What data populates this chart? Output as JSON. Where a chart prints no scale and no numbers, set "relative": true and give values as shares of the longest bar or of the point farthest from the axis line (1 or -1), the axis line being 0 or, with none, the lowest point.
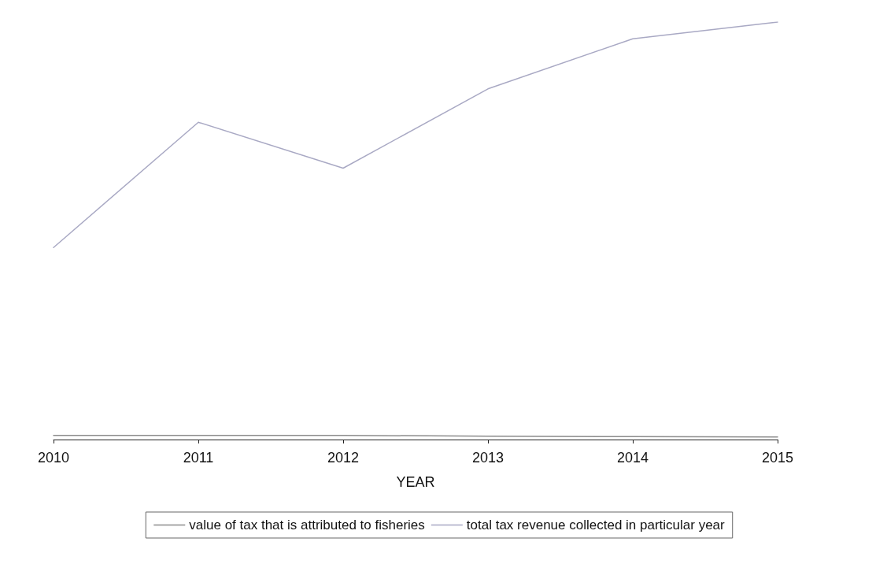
{
  "chart_data": {
    "type": "line",
    "relative": true,
    "xlabel": "YEAR",
    "categories": [
      "2010",
      "2011",
      "2012",
      "2013",
      "2014",
      "2015"
    ],
    "series": [
      {
        "name": "value of tax that is attributed to fisheries",
        "color": "#8c8c8c",
        "values": [
          0.01,
          0.01,
          0.01,
          0.008,
          0.007,
          0.006
        ]
      },
      {
        "name": "total tax revenue collected in particular year",
        "color": "#a9a9c4",
        "values": [
          0.46,
          0.76,
          0.65,
          0.84,
          0.96,
          1
        ]
      }
    ],
    "grid": false,
    "legend": "bottom",
    "marker": "none",
    "line_style": "solid"
  }
}
